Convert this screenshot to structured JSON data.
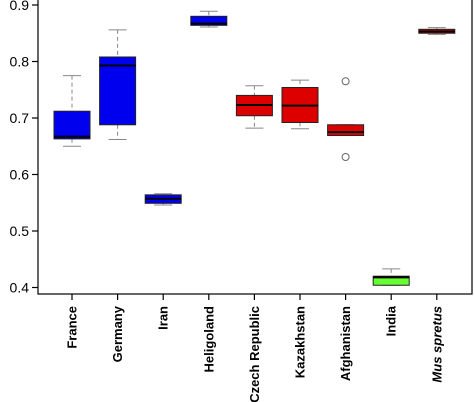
{
  "chart_data": {
    "type": "box",
    "title": "",
    "xlabel": "",
    "ylabel": "",
    "ylim": [
      0.38,
      0.905
    ],
    "yticks": [
      0.4,
      0.5,
      0.6,
      0.7,
      0.8,
      0.9
    ],
    "grid": false,
    "categories": [
      "France",
      "Germany",
      "Iran",
      "Heligoland",
      "Czech Republic",
      "Kazakhstan",
      "Afghanistan",
      "India",
      "Mus spretus"
    ],
    "italic_categories": [
      "Mus spretus"
    ],
    "boxes": [
      {
        "label": "France",
        "color": "#0000ee",
        "whisker_low": 0.65,
        "q1": 0.663,
        "median": 0.667,
        "q3": 0.712,
        "whisker_high": 0.775,
        "outliers": []
      },
      {
        "label": "Germany",
        "color": "#0000ee",
        "whisker_low": 0.662,
        "q1": 0.688,
        "median": 0.793,
        "q3": 0.808,
        "whisker_high": 0.856,
        "outliers": []
      },
      {
        "label": "Iran",
        "color": "#0000ee",
        "whisker_low": 0.546,
        "q1": 0.549,
        "median": 0.557,
        "q3": 0.564,
        "whisker_high": 0.566,
        "outliers": []
      },
      {
        "label": "Heligoland",
        "color": "#0000ee",
        "whisker_low": 0.861,
        "q1": 0.864,
        "median": 0.867,
        "q3": 0.88,
        "whisker_high": 0.889,
        "outliers": []
      },
      {
        "label": "Czech Republic",
        "color": "#dd0000",
        "whisker_low": 0.682,
        "q1": 0.704,
        "median": 0.723,
        "q3": 0.74,
        "whisker_high": 0.757,
        "outliers": []
      },
      {
        "label": "Kazakhstan",
        "color": "#dd0000",
        "whisker_low": 0.681,
        "q1": 0.692,
        "median": 0.722,
        "q3": 0.754,
        "whisker_high": 0.767,
        "outliers": []
      },
      {
        "label": "Afghanistan",
        "color": "#dd0000",
        "whisker_low": 0.669,
        "q1": 0.669,
        "median": 0.675,
        "q3": 0.688,
        "whisker_high": 0.688,
        "outliers": [
          0.765,
          0.631
        ]
      },
      {
        "label": "India",
        "color": "#66ff33",
        "whisker_low": 0.404,
        "q1": 0.404,
        "median": 0.418,
        "q3": 0.42,
        "whisker_high": 0.433,
        "outliers": []
      },
      {
        "label": "Mus spretus",
        "color": "#dd0000",
        "whisker_low": 0.848,
        "q1": 0.85,
        "median": 0.853,
        "q3": 0.857,
        "whisker_high": 0.86,
        "outliers": []
      }
    ]
  }
}
